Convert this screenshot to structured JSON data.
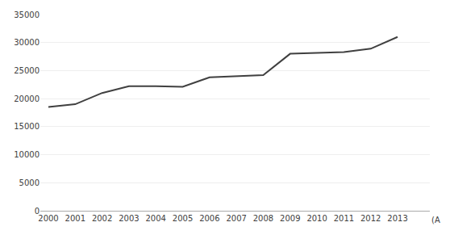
{
  "chart_data": {
    "type": "line",
    "x": [
      2000,
      2001,
      2002,
      2003,
      2004,
      2005,
      2006,
      2007,
      2008,
      2009,
      2010,
      2011,
      2012,
      2013
    ],
    "values": [
      18500,
      19000,
      21000,
      22200,
      22200,
      22100,
      23800,
      24000,
      24200,
      28000,
      28200,
      28300,
      28900,
      31000
    ],
    "color": "#404040",
    "xlim": [
      1999.7,
      2014.2
    ],
    "xticks": [
      2000,
      2001,
      2002,
      2003,
      2004,
      2005,
      2006,
      2007,
      2008,
      2009,
      2010,
      2011,
      2012,
      2013
    ],
    "ylim": [
      0,
      35000
    ],
    "yticks": [
      0,
      5000,
      10000,
      15000,
      20000,
      25000,
      30000,
      35000
    ],
    "grid": true,
    "annotation": "(A"
  }
}
